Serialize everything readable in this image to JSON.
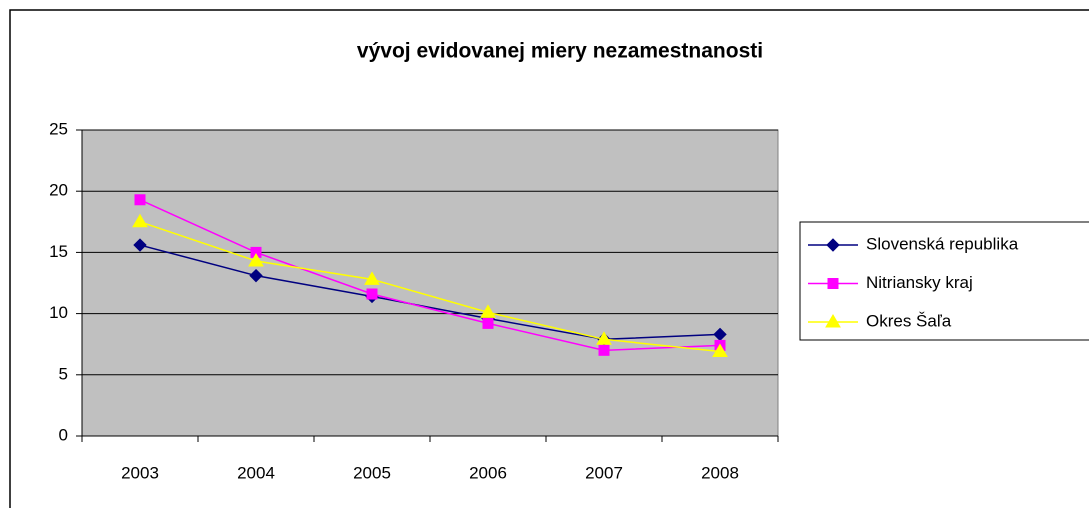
{
  "chart_data": {
    "type": "line",
    "title": "vývoj evidovanej miery nezamestnanosti",
    "categories": [
      "2003",
      "2004",
      "2005",
      "2006",
      "2007",
      "2008"
    ],
    "series": [
      {
        "name": "Slovenská republika",
        "color": "#000080",
        "marker": "diamond",
        "values": [
          15.6,
          13.1,
          11.4,
          9.6,
          7.9,
          8.3
        ]
      },
      {
        "name": "Nitriansky kraj",
        "color": "#ff00ff",
        "marker": "square",
        "values": [
          19.3,
          15.0,
          11.6,
          9.2,
          7.0,
          7.4
        ]
      },
      {
        "name": "Okres Šaľa",
        "color": "#ffff00",
        "marker": "triangle",
        "values": [
          17.5,
          14.3,
          12.8,
          10.1,
          7.9,
          6.9
        ]
      }
    ],
    "ylim": [
      0,
      25
    ],
    "yticks": [
      0,
      5,
      10,
      15,
      20,
      25
    ],
    "grid": true,
    "legend": "right"
  }
}
